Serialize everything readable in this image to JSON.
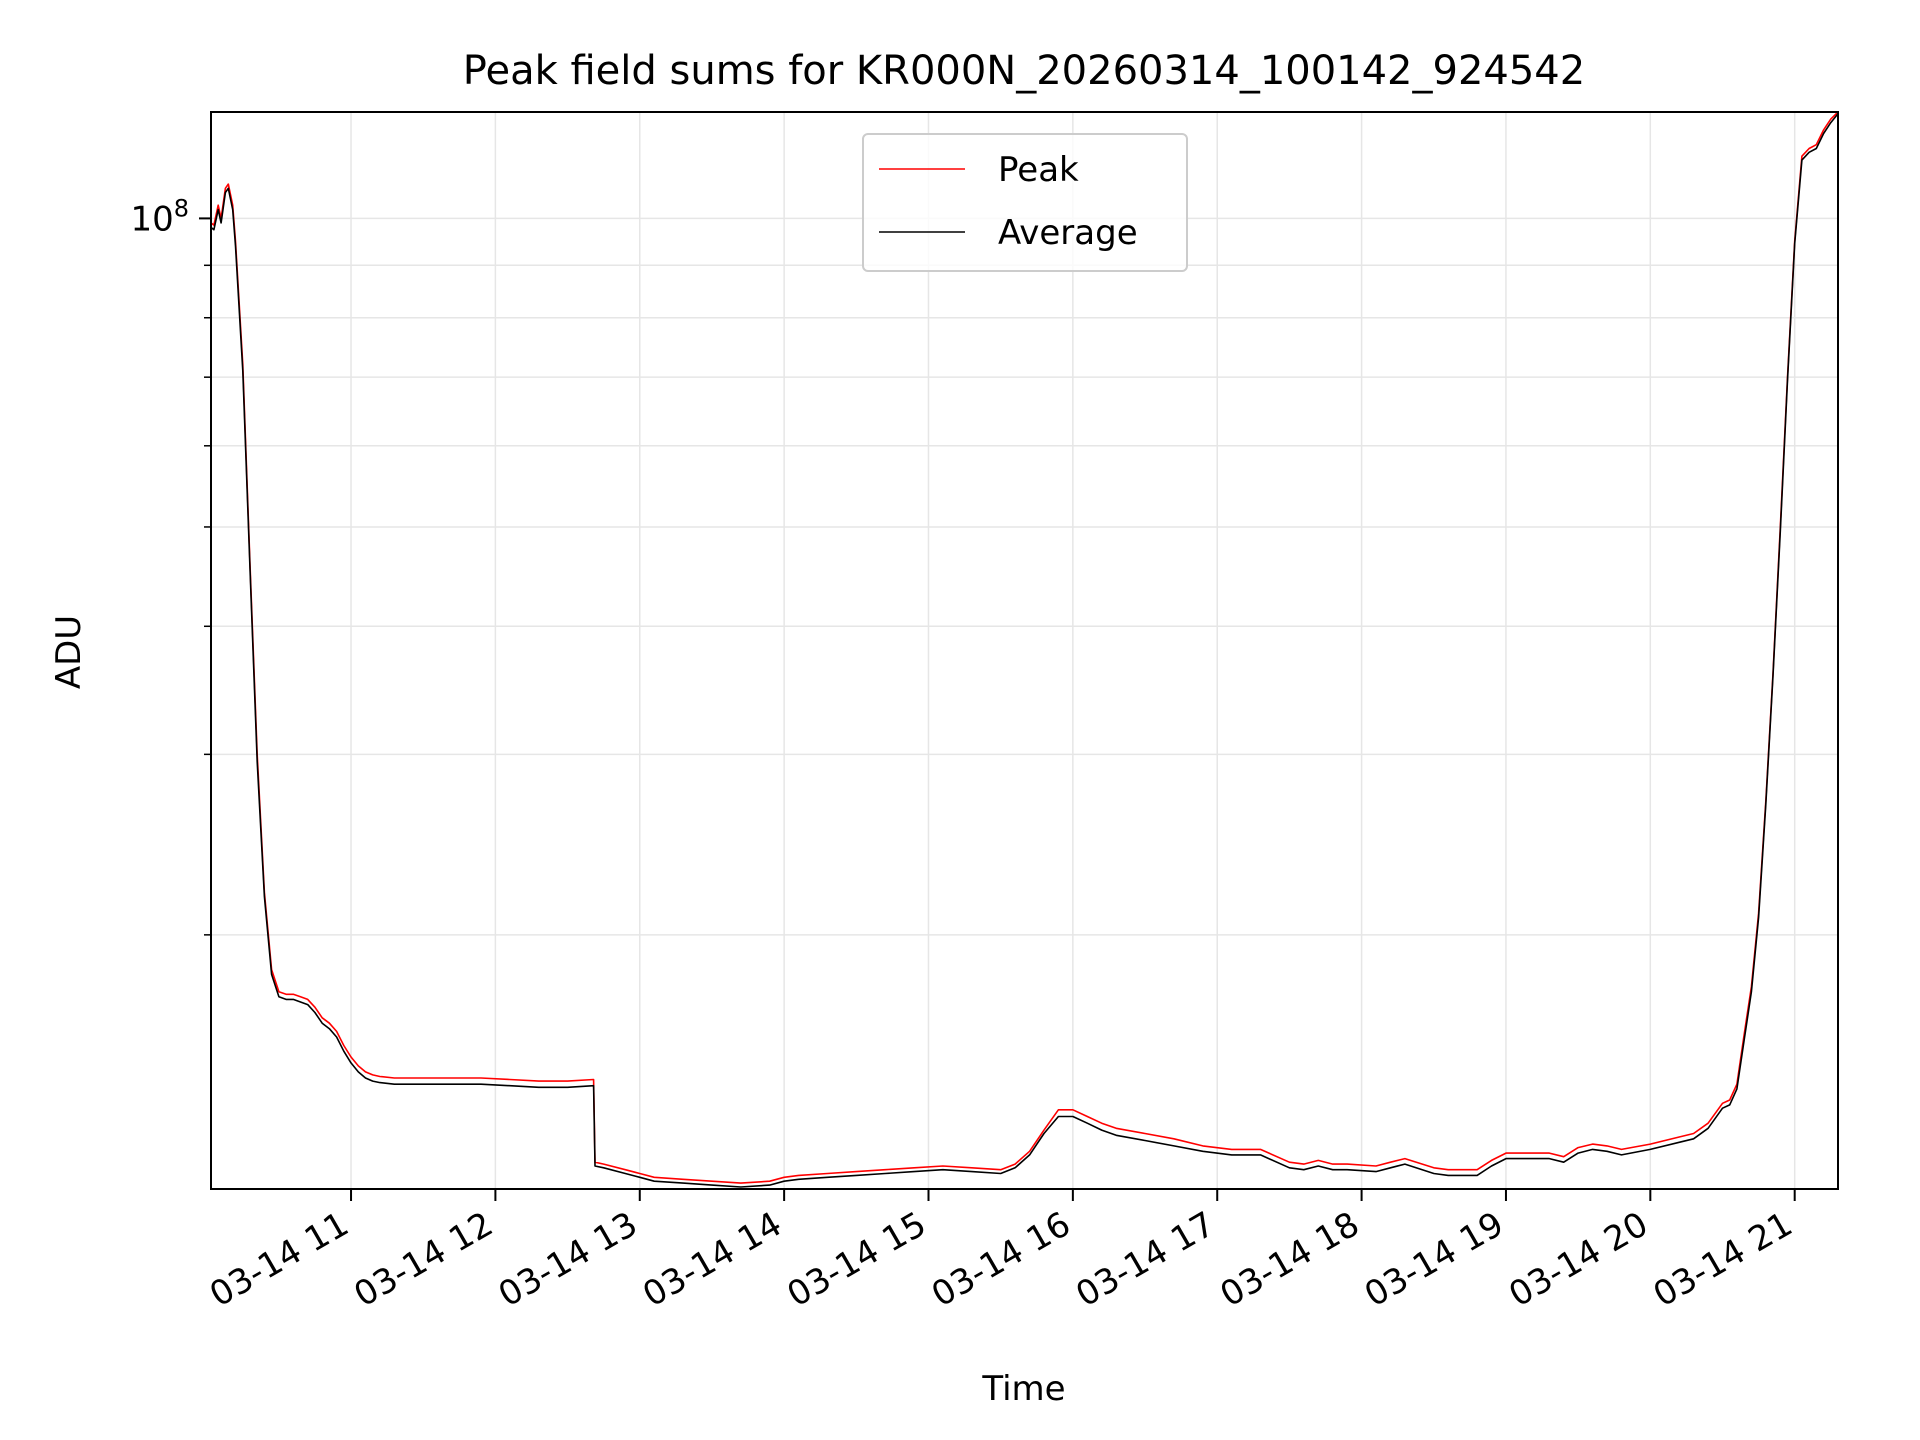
{
  "chart_data": {
    "type": "line",
    "title": "Peak field sums for KR000N_20260314_100142_924542",
    "xlabel": "Time",
    "ylabel": "ADU",
    "yscale": "log",
    "grid": true,
    "legend_position": "top-center",
    "x_units": "hours after 03-14 00:00",
    "xlim": [
      10.03,
      21.3
    ],
    "ylim": [
      11300000,
      127000000
    ],
    "x_ticks": [
      {
        "value": 11,
        "label": "03-14 11"
      },
      {
        "value": 12,
        "label": "03-14 12"
      },
      {
        "value": 13,
        "label": "03-14 13"
      },
      {
        "value": 14,
        "label": "03-14 14"
      },
      {
        "value": 15,
        "label": "03-14 15"
      },
      {
        "value": 16,
        "label": "03-14 16"
      },
      {
        "value": 17,
        "label": "03-14 17"
      },
      {
        "value": 18,
        "label": "03-14 18"
      },
      {
        "value": 19,
        "label": "03-14 19"
      },
      {
        "value": 20,
        "label": "03-14 20"
      },
      {
        "value": 21,
        "label": "03-14 21"
      }
    ],
    "y_major_ticks": [
      {
        "value": 100000000,
        "base": "10",
        "exp": "8"
      }
    ],
    "y_minor_ticks": [
      20000000,
      30000000,
      40000000,
      50000000,
      60000000,
      70000000,
      80000000,
      90000000
    ],
    "series": [
      {
        "name": "Peak",
        "color": "#ff0000",
        "x": [
          10.03,
          10.05,
          10.08,
          10.1,
          10.13,
          10.15,
          10.18,
          10.2,
          10.25,
          10.3,
          10.35,
          10.4,
          10.45,
          10.5,
          10.55,
          10.6,
          10.65,
          10.7,
          10.75,
          10.8,
          10.85,
          10.9,
          10.95,
          11.0,
          11.05,
          11.1,
          11.15,
          11.2,
          11.3,
          11.5,
          11.7,
          11.9,
          12.1,
          12.3,
          12.5,
          12.68,
          12.69,
          12.75,
          12.9,
          13.0,
          13.1,
          13.3,
          13.5,
          13.7,
          13.9,
          14.0,
          14.1,
          14.3,
          14.5,
          14.7,
          14.9,
          15.1,
          15.3,
          15.5,
          15.6,
          15.7,
          15.8,
          15.9,
          16.0,
          16.1,
          16.2,
          16.3,
          16.5,
          16.7,
          16.9,
          17.1,
          17.3,
          17.5,
          17.6,
          17.7,
          17.8,
          17.9,
          18.1,
          18.2,
          18.3,
          18.5,
          18.6,
          18.8,
          18.9,
          19.0,
          19.1,
          19.3,
          19.4,
          19.5,
          19.6,
          19.7,
          19.8,
          20.0,
          20.2,
          20.3,
          20.4,
          20.5,
          20.55,
          20.6,
          20.65,
          20.7,
          20.75,
          20.8,
          20.85,
          20.9,
          20.95,
          21.0,
          21.05,
          21.1,
          21.15,
          21.2,
          21.25,
          21.3
        ],
        "y": [
          99000000,
          98500000,
          103000000,
          100000000,
          107000000,
          108000000,
          103000000,
          95000000,
          72000000,
          46000000,
          30000000,
          22000000,
          18500000,
          17600000,
          17500000,
          17500000,
          17400000,
          17300000,
          17000000,
          16600000,
          16400000,
          16100000,
          15600000,
          15200000,
          14900000,
          14700000,
          14600000,
          14550000,
          14500000,
          14500000,
          14500000,
          14500000,
          14450000,
          14400000,
          14400000,
          14450000,
          12000000,
          11950000,
          11800000,
          11700000,
          11600000,
          11550000,
          11500000,
          11450000,
          11500000,
          11600000,
          11650000,
          11700000,
          11750000,
          11800000,
          11850000,
          11900000,
          11850000,
          11800000,
          11950000,
          12300000,
          12900000,
          13500000,
          13500000,
          13300000,
          13100000,
          12950000,
          12800000,
          12650000,
          12450000,
          12350000,
          12350000,
          12000000,
          11950000,
          12050000,
          11950000,
          11950000,
          11900000,
          12000000,
          12100000,
          11850000,
          11800000,
          11800000,
          12050000,
          12250000,
          12250000,
          12250000,
          12150000,
          12400000,
          12500000,
          12450000,
          12350000,
          12500000,
          12700000,
          12800000,
          13100000,
          13700000,
          13800000,
          14300000,
          16000000,
          17800000,
          21000000,
          27000000,
          36000000,
          50000000,
          70000000,
          95000000,
          115000000,
          117000000,
          118000000,
          122000000,
          125000000,
          127000000
        ]
      },
      {
        "name": "Average",
        "color": "#000000",
        "x": [
          10.03,
          10.05,
          10.08,
          10.1,
          10.13,
          10.15,
          10.18,
          10.2,
          10.25,
          10.3,
          10.35,
          10.4,
          10.45,
          10.5,
          10.55,
          10.6,
          10.65,
          10.7,
          10.75,
          10.8,
          10.85,
          10.9,
          10.95,
          11.0,
          11.05,
          11.1,
          11.15,
          11.2,
          11.3,
          11.5,
          11.7,
          11.9,
          12.1,
          12.3,
          12.5,
          12.68,
          12.69,
          12.75,
          12.9,
          13.0,
          13.1,
          13.3,
          13.5,
          13.7,
          13.9,
          14.0,
          14.1,
          14.3,
          14.5,
          14.7,
          14.9,
          15.1,
          15.3,
          15.5,
          15.6,
          15.7,
          15.8,
          15.9,
          16.0,
          16.1,
          16.2,
          16.3,
          16.5,
          16.7,
          16.9,
          17.1,
          17.3,
          17.5,
          17.6,
          17.7,
          17.8,
          17.9,
          18.1,
          18.2,
          18.3,
          18.5,
          18.6,
          18.8,
          18.9,
          19.0,
          19.1,
          19.3,
          19.4,
          19.5,
          19.6,
          19.7,
          19.8,
          20.0,
          20.2,
          20.3,
          20.4,
          20.5,
          20.55,
          20.6,
          20.65,
          20.7,
          20.75,
          20.8,
          20.85,
          20.9,
          20.95,
          21.0,
          21.05,
          21.1,
          21.15,
          21.2,
          21.25,
          21.3
        ],
        "y": [
          98000000,
          97500000,
          102000000,
          99000000,
          106000000,
          107000000,
          102000000,
          94000000,
          71000000,
          45500000,
          29500000,
          21800000,
          18300000,
          17400000,
          17300000,
          17300000,
          17200000,
          17100000,
          16800000,
          16400000,
          16200000,
          15900000,
          15400000,
          15000000,
          14700000,
          14500000,
          14400000,
          14350000,
          14300000,
          14300000,
          14300000,
          14300000,
          14250000,
          14200000,
          14200000,
          14250000,
          11900000,
          11850000,
          11700000,
          11600000,
          11500000,
          11450000,
          11400000,
          11350000,
          11400000,
          11500000,
          11550000,
          11600000,
          11650000,
          11700000,
          11750000,
          11800000,
          11750000,
          11700000,
          11850000,
          12200000,
          12800000,
          13300000,
          13300000,
          13100000,
          12900000,
          12750000,
          12600000,
          12450000,
          12300000,
          12200000,
          12200000,
          11850000,
          11800000,
          11900000,
          11800000,
          11800000,
          11750000,
          11850000,
          11950000,
          11700000,
          11650000,
          11650000,
          11900000,
          12100000,
          12100000,
          12100000,
          12000000,
          12250000,
          12350000,
          12300000,
          12200000,
          12350000,
          12550000,
          12650000,
          12950000,
          13550000,
          13650000,
          14150000,
          15800000,
          17600000,
          20800000,
          26800000,
          35800000,
          49500000,
          69500000,
          94500000,
          114000000,
          116000000,
          117000000,
          121000000,
          124000000,
          126500000
        ]
      }
    ]
  }
}
